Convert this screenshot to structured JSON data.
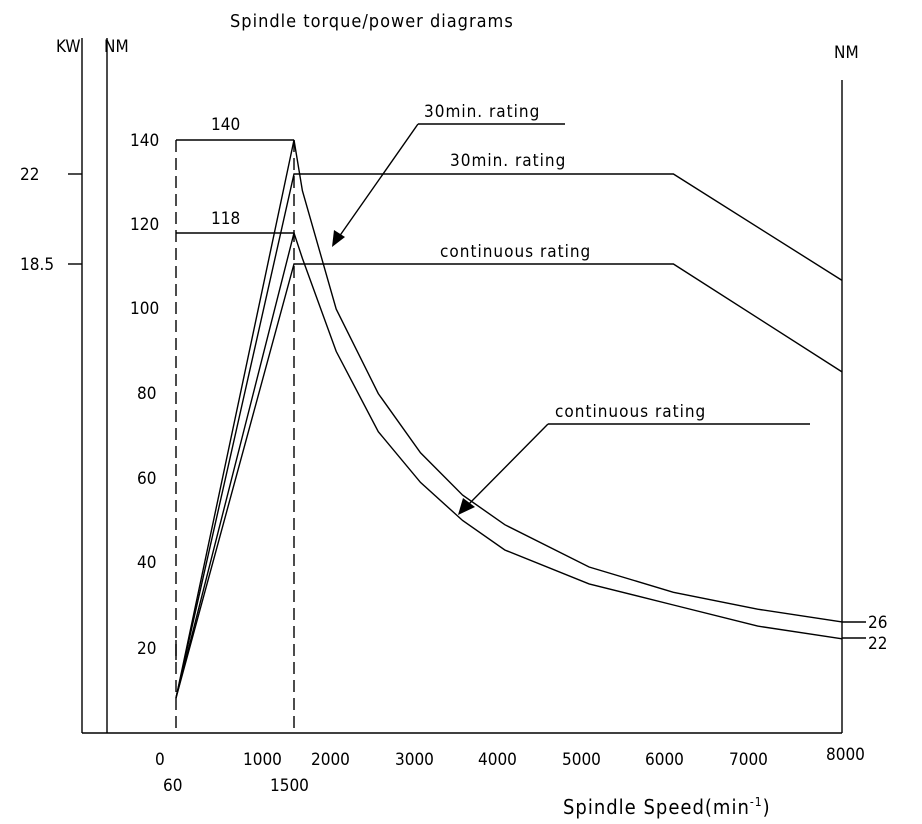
{
  "chart_data": {
    "type": "line",
    "title": "Spindle torque/power diagrams",
    "xlabel_main": "Spindle Speed(min",
    "xlabel_sup": "-1",
    "xlabel_close": ")",
    "left_kw_label": "KW",
    "left_nm_label": "NM",
    "right_nm_label": "NM",
    "x_ticks": [
      "0",
      "1000",
      "2000",
      "3000",
      "4000",
      "5000",
      "6000",
      "7000",
      "8000"
    ],
    "x_ticks_secondary": [
      "60",
      "1500"
    ],
    "nm_ticks": [
      "20",
      "40",
      "60",
      "80",
      "100",
      "120",
      "140"
    ],
    "kw_ticks": [
      "22",
      "18.5"
    ],
    "right_end_labels": [
      "26",
      "22"
    ],
    "plateau_labels": [
      "140",
      "118"
    ],
    "annotations": {
      "torque_30min": "30min. rating",
      "power_30min": "30min. rating",
      "power_cont": "continuous rating",
      "torque_cont": "continuous rating"
    },
    "series": [
      {
        "name": "30min. rating",
        "quantity": "torque",
        "x": [
          60,
          1500,
          1600,
          2000,
          2500,
          3000,
          3500,
          4000,
          5000,
          6000,
          7000,
          8000
        ],
        "y": [
          8,
          140,
          128,
          100,
          80,
          66,
          56,
          49,
          39,
          33,
          29,
          26
        ]
      },
      {
        "name": "continuous rating",
        "quantity": "torque",
        "x": [
          60,
          1500,
          1600,
          2000,
          2500,
          3000,
          3500,
          4000,
          5000,
          6000,
          7000,
          8000
        ],
        "y": [
          8,
          118,
          112,
          90,
          71,
          59,
          50,
          43,
          35,
          30,
          25,
          22
        ]
      },
      {
        "name": "30min. rating",
        "quantity": "power",
        "x": [
          60,
          1500,
          6000,
          8000
        ],
        "y": [
          0,
          22,
          22,
          17.8
        ]
      },
      {
        "name": "continuous rating",
        "quantity": "power",
        "x": [
          60,
          1500,
          6000,
          8000
        ],
        "y": [
          0,
          18.5,
          18.5,
          13.9
        ]
      }
    ]
  }
}
